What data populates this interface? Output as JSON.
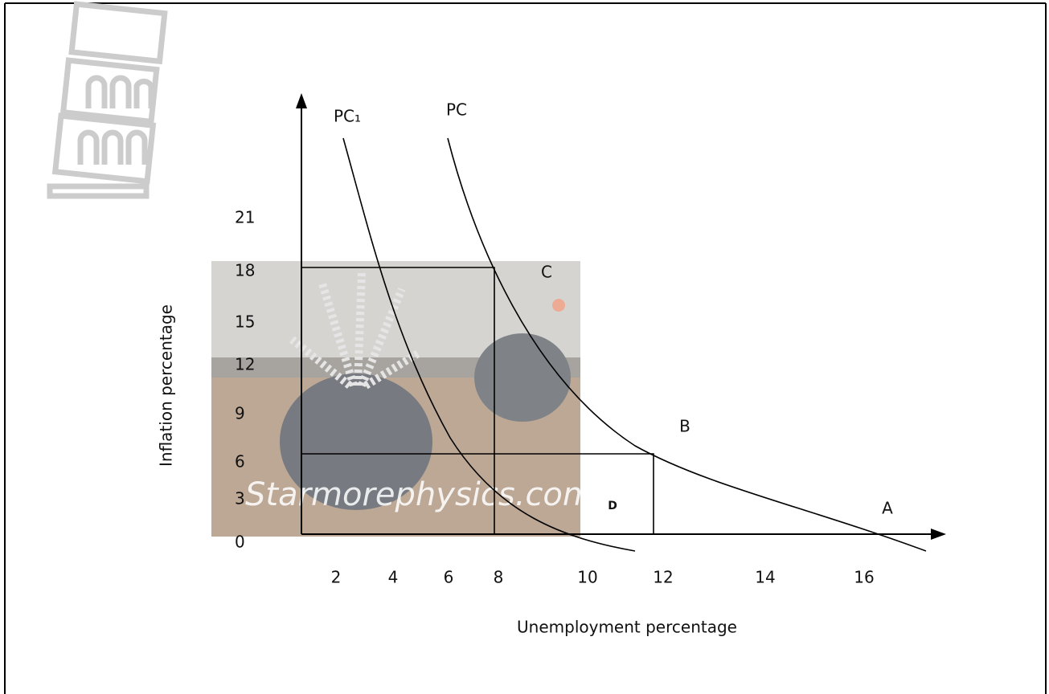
{
  "y_axis": {
    "label": "Inflation percentage",
    "ticks": [
      "21",
      "18",
      "15",
      "12",
      "9",
      "6",
      "3",
      "0"
    ]
  },
  "x_axis": {
    "label": "Unemployment percentage",
    "ticks": [
      "2",
      "4",
      "6",
      "8",
      "10",
      "12",
      "14",
      "16"
    ]
  },
  "curves": [
    {
      "label": "PC₁"
    },
    {
      "label": "PC"
    }
  ],
  "points": [
    "A",
    "B",
    "C",
    "D"
  ],
  "watermark": "Starmorephysics.com"
}
